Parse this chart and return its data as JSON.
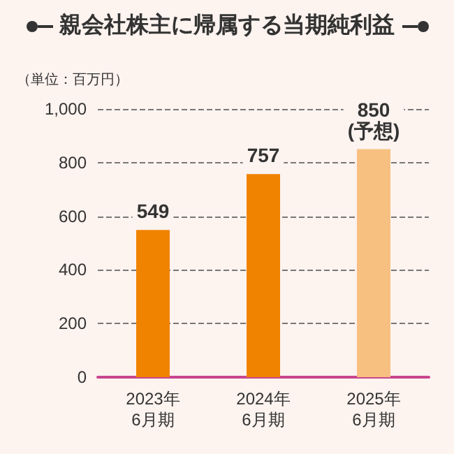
{
  "chart_data": {
    "type": "bar",
    "title": "親会社株主に帰属する当期純利益",
    "ylabel": "（単位：百万円）",
    "categories": [
      "2023年\n6月期",
      "2024年\n6月期",
      "2025年\n6月期"
    ],
    "values": [
      549,
      757,
      850
    ],
    "colors": [
      "#f08300",
      "#f08300",
      "#f7c081"
    ],
    "value_labels": [
      "549",
      "757",
      "850\n(予想)"
    ],
    "ylim": [
      0,
      1000
    ],
    "yticks": [
      0,
      200,
      400,
      600,
      800,
      {
        "value": 1000,
        "label": "1,000"
      }
    ],
    "grid": "y"
  }
}
